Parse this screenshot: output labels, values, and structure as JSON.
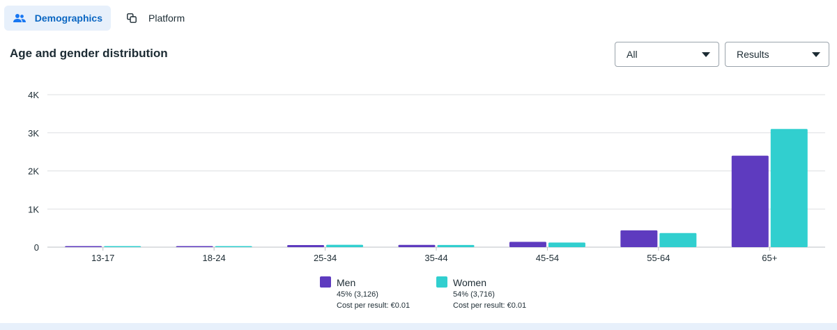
{
  "tabs": [
    {
      "label": "Demographics",
      "icon": "people-icon",
      "active": true
    },
    {
      "label": "Platform",
      "icon": "copy-icon",
      "active": false
    }
  ],
  "title": "Age and gender distribution",
  "filters": {
    "audience": "All",
    "metric": "Results"
  },
  "chart_data": {
    "type": "bar",
    "categories": [
      "13-17",
      "18-24",
      "25-34",
      "35-44",
      "45-54",
      "55-64",
      "65+"
    ],
    "series": [
      {
        "name": "Men",
        "color": "#5e3bbf",
        "values": [
          10,
          15,
          55,
          60,
          140,
          440,
          2400
        ]
      },
      {
        "name": "Women",
        "color": "#31cfcf",
        "values": [
          12,
          18,
          62,
          58,
          120,
          370,
          3100
        ]
      }
    ],
    "yticks": [
      "0",
      "1K",
      "2K",
      "3K",
      "4K"
    ],
    "ylim": [
      0,
      4000
    ],
    "grid": true,
    "legend_position": "bottom"
  },
  "legend": [
    {
      "name": "Men",
      "share": "45% (3,126)",
      "cost": "Cost per result: €0.01",
      "color": "#5e3bbf"
    },
    {
      "name": "Women",
      "share": "54% (3,716)",
      "cost": "Cost per result: €0.01",
      "color": "#31cfcf"
    }
  ]
}
